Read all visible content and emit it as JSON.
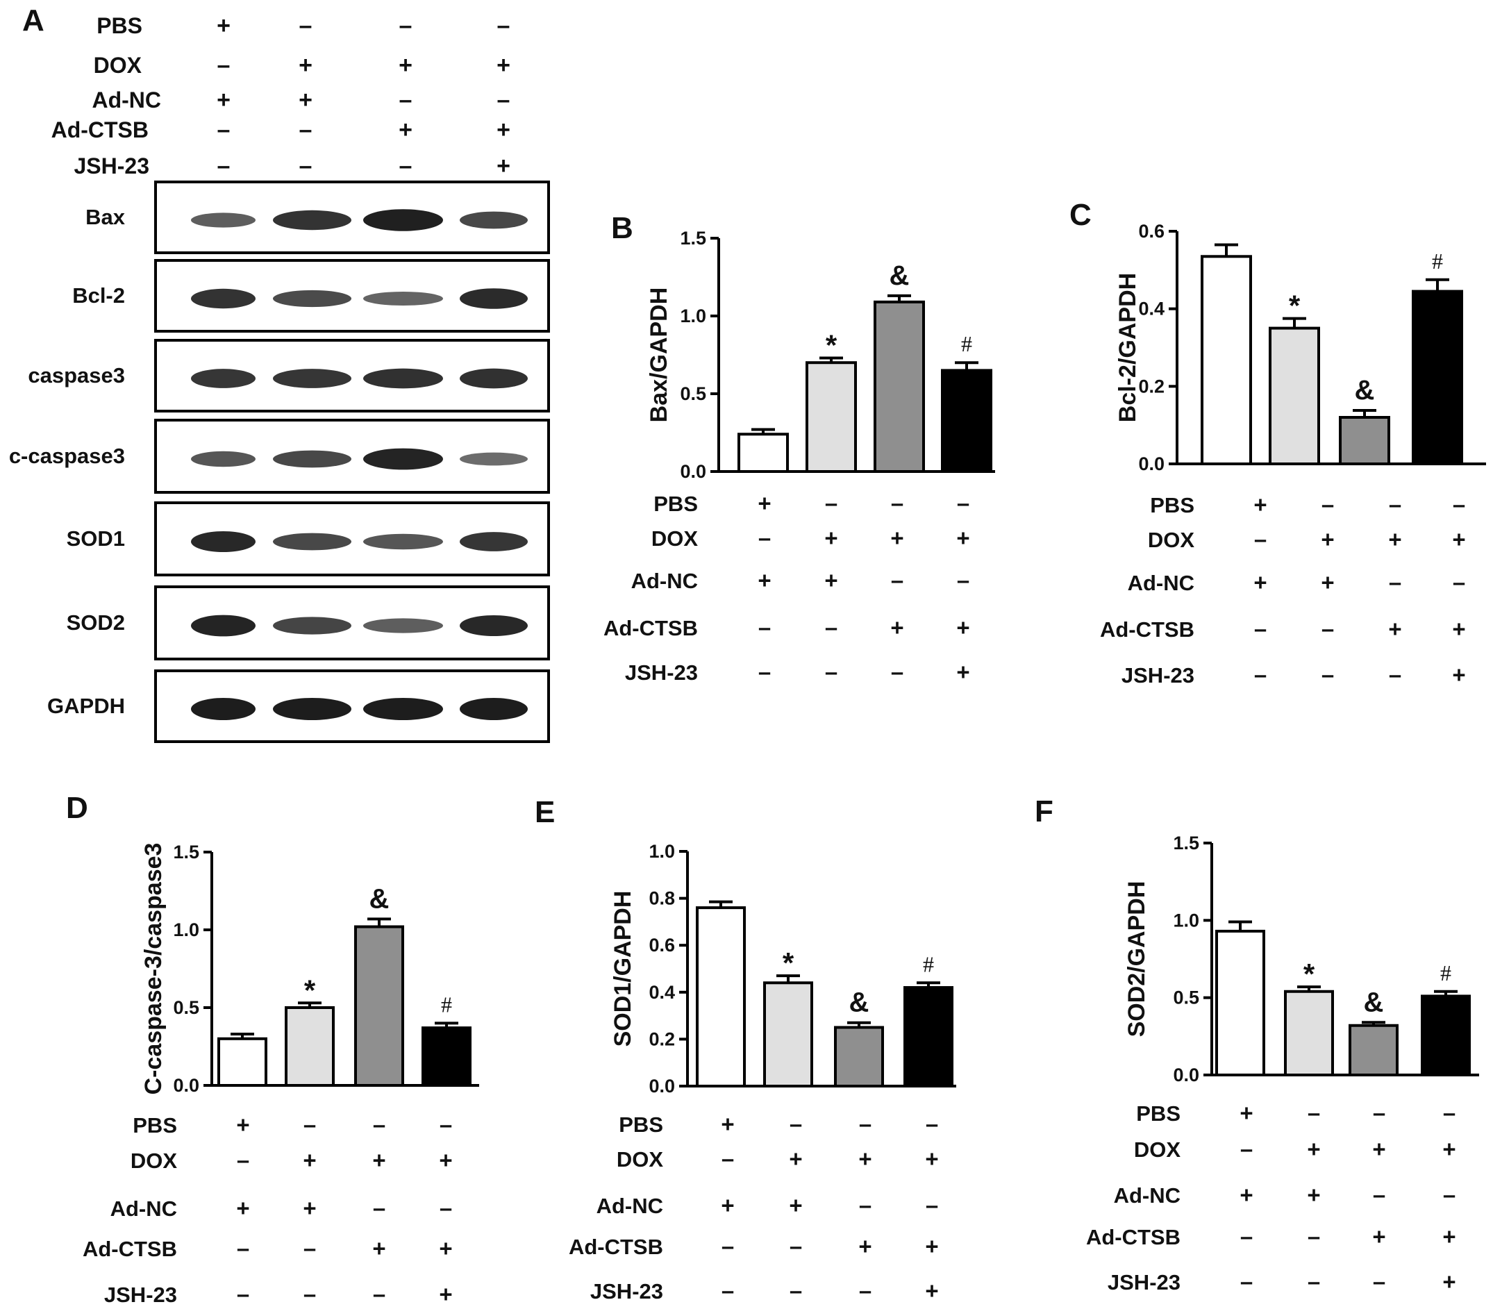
{
  "groups": [
    "PBS+Ad-NC",
    "DOX+Ad-NC",
    "DOX+Ad-CTSB",
    "DOX+Ad-CTSB+JSH-23"
  ],
  "conditions": {
    "rows": [
      "PBS",
      "DOX",
      "Ad-NC",
      "Ad-CTSB",
      "JSH-23"
    ],
    "signs": [
      [
        "+",
        "–",
        "–",
        "–"
      ],
      [
        "–",
        "+",
        "+",
        "+"
      ],
      [
        "+",
        "+",
        "–",
        "–"
      ],
      [
        "–",
        "–",
        "+",
        "+"
      ],
      [
        "–",
        "–",
        "–",
        "+"
      ]
    ]
  },
  "colors": {
    "bar_fills": [
      "#ffffff",
      "#e0e0e0",
      "#8f8f8f",
      "#000000"
    ],
    "band": "#111111"
  },
  "blot": {
    "panel_label": "A",
    "lanes": 4,
    "rows": [
      {
        "label": "Bax",
        "intensities": [
          0.55,
          0.85,
          0.98,
          0.7
        ]
      },
      {
        "label": "Bcl-2",
        "intensities": [
          0.85,
          0.68,
          0.5,
          0.9
        ]
      },
      {
        "label": "caspase3",
        "intensities": [
          0.82,
          0.82,
          0.86,
          0.86
        ]
      },
      {
        "label": "c-caspase3",
        "intensities": [
          0.6,
          0.7,
          0.95,
          0.45
        ]
      },
      {
        "label": "SOD1",
        "intensities": [
          0.92,
          0.7,
          0.6,
          0.82
        ]
      },
      {
        "label": "SOD2",
        "intensities": [
          0.95,
          0.72,
          0.55,
          0.92
        ]
      },
      {
        "label": "GAPDH",
        "intensities": [
          1.0,
          1.0,
          1.0,
          1.0
        ]
      }
    ]
  },
  "chart_data": [
    {
      "panel_label": "B",
      "type": "bar",
      "ylabel": "Bax/GAPDH",
      "ylim": [
        0,
        1.5
      ],
      "yticks": [
        "0.0",
        "0.5",
        "1.0",
        "1.5"
      ],
      "values": [
        0.24,
        0.7,
        1.09,
        0.65
      ],
      "errors": [
        0.03,
        0.03,
        0.04,
        0.05
      ],
      "annotations": [
        "",
        "*",
        "&",
        "#"
      ]
    },
    {
      "panel_label": "C",
      "type": "bar",
      "ylabel": "Bcl-2/GAPDH",
      "ylim": [
        0,
        0.6
      ],
      "yticks": [
        "0.0",
        "0.2",
        "0.4",
        "0.6"
      ],
      "values": [
        0.535,
        0.35,
        0.12,
        0.445
      ],
      "errors": [
        0.03,
        0.025,
        0.018,
        0.03
      ],
      "annotations": [
        "",
        "*",
        "&",
        "#"
      ]
    },
    {
      "panel_label": "D",
      "type": "bar",
      "ylabel": "C-caspase-3/caspase3",
      "ylim": [
        0,
        1.5
      ],
      "yticks": [
        "0.0",
        "0.5",
        "1.0",
        "1.5"
      ],
      "values": [
        0.3,
        0.5,
        1.02,
        0.37
      ],
      "errors": [
        0.03,
        0.03,
        0.05,
        0.03
      ],
      "annotations": [
        "",
        "*",
        "&",
        "#"
      ]
    },
    {
      "panel_label": "E",
      "type": "bar",
      "ylabel": "SOD1/GAPDH",
      "ylim": [
        0,
        1.0
      ],
      "yticks": [
        "0.0",
        "0.2",
        "0.4",
        "0.6",
        "0.8",
        "1.0"
      ],
      "values": [
        0.76,
        0.44,
        0.25,
        0.42
      ],
      "errors": [
        0.025,
        0.03,
        0.02,
        0.02
      ],
      "annotations": [
        "",
        "*",
        "&",
        "#"
      ]
    },
    {
      "panel_label": "F",
      "type": "bar",
      "ylabel": "SOD2/GAPDH",
      "ylim": [
        0,
        1.5
      ],
      "yticks": [
        "0.0",
        "0.5",
        "1.0",
        "1.5"
      ],
      "values": [
        0.93,
        0.54,
        0.32,
        0.51
      ],
      "errors": [
        0.06,
        0.03,
        0.02,
        0.03
      ],
      "annotations": [
        "",
        "*",
        "&",
        "#"
      ]
    }
  ]
}
